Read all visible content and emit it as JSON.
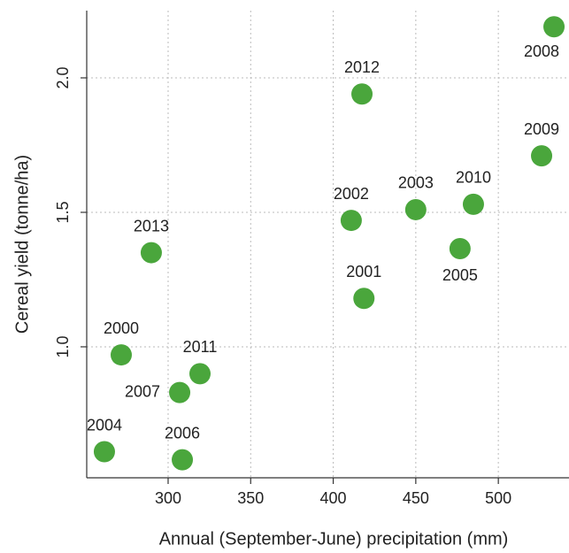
{
  "chart_data": {
    "type": "scatter",
    "x_label": "Annual (September-June) precipitation (mm)",
    "y_label": "Cereal yield (tonne/ha)",
    "series": [
      {
        "color": "#4aa63c",
        "labels": [
          "2008",
          "2012",
          "2009",
          "2002",
          "2003",
          "2010",
          "2005",
          "2013",
          "2001",
          "2000",
          "2011",
          "2007",
          "2004",
          "2006"
        ],
        "x": [
          533.7,
          417.4,
          526.2,
          410.9,
          450,
          484.9,
          476.8,
          289.8,
          418.6,
          271.6,
          319.3,
          307,
          261.4,
          308.6
        ],
        "values": [
          2.19,
          1.94,
          1.71,
          1.47,
          1.51,
          1.53,
          1.365,
          1.35,
          1.18,
          0.97,
          0.9,
          0.83,
          0.61,
          0.58
        ]
      }
    ],
    "xlim": [
      250.7,
      542.8
    ],
    "xticks": [
      300,
      350,
      400,
      450,
      500
    ],
    "ylim": [
      0.513,
      2.25
    ],
    "yticks": [
      {
        "value": 1,
        "label": "1.0"
      },
      1.5,
      {
        "value": 2,
        "label": "2.0"
      }
    ],
    "grid": true
  }
}
